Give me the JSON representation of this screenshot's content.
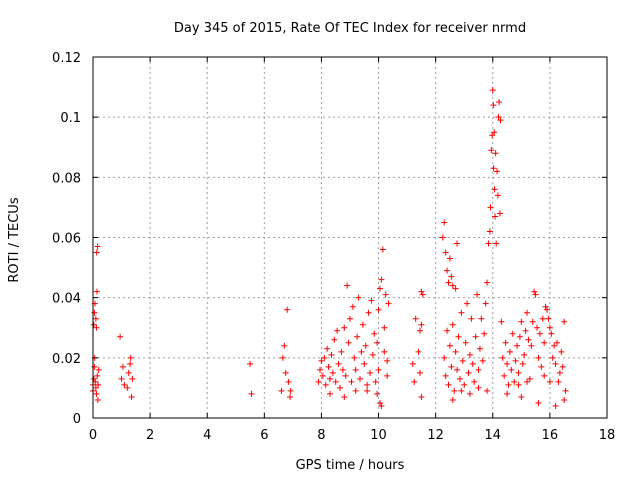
{
  "chart_data": {
    "type": "scatter",
    "title": "Day 345 of 2015, Rate Of TEC Index for receiver nrmd",
    "xlabel": "GPS time / hours",
    "ylabel": "ROTI / TECUs",
    "xlim": [
      0,
      18
    ],
    "ylim": [
      0,
      0.12
    ],
    "xticks": [
      "0",
      "2",
      "4",
      "6",
      "8",
      "10",
      "12",
      "14",
      "16",
      "18"
    ],
    "yticks": [
      "0",
      "0.02",
      "0.04",
      "0.06",
      "0.08",
      "0.1",
      "0.12"
    ],
    "grid": true,
    "marker": "+",
    "color": "#ff0000",
    "series": [
      {
        "name": "ROTI",
        "points": [
          [
            0.0,
            0.009
          ],
          [
            0.0,
            0.011
          ],
          [
            0.03,
            0.013
          ],
          [
            0.05,
            0.017
          ],
          [
            0.06,
            0.02
          ],
          [
            0.08,
            0.012
          ],
          [
            0.1,
            0.01
          ],
          [
            0.12,
            0.008
          ],
          [
            0.15,
            0.014
          ],
          [
            0.17,
            0.006
          ],
          [
            0.03,
            0.031
          ],
          [
            0.05,
            0.035
          ],
          [
            0.07,
            0.038
          ],
          [
            0.1,
            0.033
          ],
          [
            0.12,
            0.03
          ],
          [
            0.14,
            0.042
          ],
          [
            0.13,
            0.055
          ],
          [
            0.16,
            0.057
          ],
          [
            0.18,
            0.011
          ],
          [
            0.2,
            0.016
          ],
          [
            0.95,
            0.027
          ],
          [
            1.0,
            0.013
          ],
          [
            1.05,
            0.017
          ],
          [
            1.1,
            0.011
          ],
          [
            1.2,
            0.01
          ],
          [
            1.25,
            0.015
          ],
          [
            1.3,
            0.018
          ],
          [
            1.32,
            0.02
          ],
          [
            1.35,
            0.007
          ],
          [
            1.38,
            0.013
          ],
          [
            5.5,
            0.018
          ],
          [
            5.55,
            0.008
          ],
          [
            6.6,
            0.009
          ],
          [
            6.65,
            0.02
          ],
          [
            6.7,
            0.024
          ],
          [
            6.75,
            0.015
          ],
          [
            6.8,
            0.036
          ],
          [
            6.85,
            0.012
          ],
          [
            6.9,
            0.007
          ],
          [
            6.92,
            0.009
          ],
          [
            7.9,
            0.012
          ],
          [
            7.95,
            0.016
          ],
          [
            8.0,
            0.019
          ],
          [
            8.05,
            0.014
          ],
          [
            8.1,
            0.02
          ],
          [
            8.15,
            0.011
          ],
          [
            8.2,
            0.023
          ],
          [
            8.25,
            0.017
          ],
          [
            8.3,
            0.013
          ],
          [
            8.35,
            0.021
          ],
          [
            8.4,
            0.015
          ],
          [
            8.45,
            0.026
          ],
          [
            8.5,
            0.012
          ],
          [
            8.55,
            0.029
          ],
          [
            8.6,
            0.018
          ],
          [
            8.65,
            0.01
          ],
          [
            8.7,
            0.022
          ],
          [
            8.75,
            0.016
          ],
          [
            8.8,
            0.03
          ],
          [
            8.85,
            0.014
          ],
          [
            8.9,
            0.044
          ],
          [
            8.95,
            0.025
          ],
          [
            9.0,
            0.033
          ],
          [
            9.05,
            0.012
          ],
          [
            9.1,
            0.037
          ],
          [
            9.15,
            0.02
          ],
          [
            9.2,
            0.016
          ],
          [
            9.25,
            0.027
          ],
          [
            9.3,
            0.04
          ],
          [
            9.35,
            0.013
          ],
          [
            9.4,
            0.022
          ],
          [
            9.45,
            0.031
          ],
          [
            9.5,
            0.018
          ],
          [
            9.55,
            0.024
          ],
          [
            9.6,
            0.009
          ],
          [
            9.65,
            0.035
          ],
          [
            9.7,
            0.015
          ],
          [
            9.75,
            0.039
          ],
          [
            9.8,
            0.021
          ],
          [
            9.85,
            0.028
          ],
          [
            9.9,
            0.012
          ],
          [
            9.95,
            0.025
          ],
          [
            10.0,
            0.036
          ],
          [
            10.05,
            0.043
          ],
          [
            10.1,
            0.046
          ],
          [
            10.15,
            0.056
          ],
          [
            10.2,
            0.03
          ],
          [
            10.25,
            0.041
          ],
          [
            10.3,
            0.019
          ],
          [
            10.35,
            0.038
          ],
          [
            10.05,
            0.005
          ],
          [
            9.95,
            0.008
          ],
          [
            10.0,
            0.016
          ],
          [
            10.2,
            0.022
          ],
          [
            10.1,
            0.004
          ],
          [
            9.6,
            0.011
          ],
          [
            9.2,
            0.009
          ],
          [
            8.8,
            0.007
          ],
          [
            8.3,
            0.008
          ],
          [
            10.3,
            0.014
          ],
          [
            11.2,
            0.018
          ],
          [
            11.25,
            0.012
          ],
          [
            11.3,
            0.033
          ],
          [
            11.5,
            0.042
          ],
          [
            11.55,
            0.041
          ],
          [
            11.5,
            0.007
          ],
          [
            11.45,
            0.015
          ],
          [
            11.4,
            0.022
          ],
          [
            11.45,
            0.029
          ],
          [
            11.5,
            0.031
          ],
          [
            12.25,
            0.06
          ],
          [
            12.3,
            0.065
          ],
          [
            12.35,
            0.055
          ],
          [
            12.4,
            0.049
          ],
          [
            12.45,
            0.045
          ],
          [
            12.5,
            0.053
          ],
          [
            12.55,
            0.047
          ],
          [
            12.6,
            0.044
          ],
          [
            12.7,
            0.043
          ],
          [
            12.75,
            0.058
          ],
          [
            12.3,
            0.02
          ],
          [
            12.35,
            0.014
          ],
          [
            12.4,
            0.029
          ],
          [
            12.45,
            0.011
          ],
          [
            12.5,
            0.024
          ],
          [
            12.55,
            0.017
          ],
          [
            12.6,
            0.031
          ],
          [
            12.65,
            0.009
          ],
          [
            12.7,
            0.022
          ],
          [
            12.75,
            0.016
          ],
          [
            12.8,
            0.027
          ],
          [
            12.85,
            0.013
          ],
          [
            12.9,
            0.035
          ],
          [
            12.95,
            0.019
          ],
          [
            13.0,
            0.011
          ],
          [
            13.05,
            0.025
          ],
          [
            13.1,
            0.038
          ],
          [
            13.15,
            0.015
          ],
          [
            13.2,
            0.021
          ],
          [
            13.25,
            0.033
          ],
          [
            13.3,
            0.018
          ],
          [
            13.35,
            0.012
          ],
          [
            13.4,
            0.027
          ],
          [
            13.45,
            0.041
          ],
          [
            13.5,
            0.016
          ],
          [
            13.55,
            0.023
          ],
          [
            13.6,
            0.033
          ],
          [
            13.65,
            0.019
          ],
          [
            13.7,
            0.028
          ],
          [
            13.75,
            0.038
          ],
          [
            13.8,
            0.045
          ],
          [
            13.85,
            0.058
          ],
          [
            13.9,
            0.062
          ],
          [
            13.92,
            0.07
          ],
          [
            13.95,
            0.089
          ],
          [
            14.0,
            0.109
          ],
          [
            14.02,
            0.104
          ],
          [
            14.05,
            0.095
          ],
          [
            14.1,
            0.088
          ],
          [
            14.15,
            0.082
          ],
          [
            14.18,
            0.074
          ],
          [
            14.2,
            0.1
          ],
          [
            14.22,
            0.105
          ],
          [
            14.25,
            0.068
          ],
          [
            14.27,
            0.099
          ],
          [
            13.98,
            0.094
          ],
          [
            14.08,
            0.067
          ],
          [
            14.12,
            0.058
          ],
          [
            14.03,
            0.083
          ],
          [
            14.06,
            0.076
          ],
          [
            14.3,
            0.032
          ],
          [
            14.35,
            0.02
          ],
          [
            14.4,
            0.014
          ],
          [
            14.45,
            0.025
          ],
          [
            14.5,
            0.018
          ],
          [
            14.55,
            0.011
          ],
          [
            14.6,
            0.022
          ],
          [
            14.65,
            0.016
          ],
          [
            14.7,
            0.028
          ],
          [
            14.75,
            0.012
          ],
          [
            14.8,
            0.019
          ],
          [
            14.85,
            0.024
          ],
          [
            14.9,
            0.015
          ],
          [
            14.95,
            0.027
          ],
          [
            15.0,
            0.032
          ],
          [
            15.05,
            0.018
          ],
          [
            15.1,
            0.021
          ],
          [
            15.15,
            0.029
          ],
          [
            15.2,
            0.035
          ],
          [
            15.25,
            0.026
          ],
          [
            15.3,
            0.013
          ],
          [
            15.35,
            0.024
          ],
          [
            15.4,
            0.032
          ],
          [
            15.45,
            0.042
          ],
          [
            15.5,
            0.041
          ],
          [
            15.55,
            0.03
          ],
          [
            15.6,
            0.02
          ],
          [
            15.65,
            0.028
          ],
          [
            15.7,
            0.017
          ],
          [
            15.75,
            0.033
          ],
          [
            15.8,
            0.025
          ],
          [
            15.85,
            0.037
          ],
          [
            15.9,
            0.036
          ],
          [
            15.95,
            0.033
          ],
          [
            16.0,
            0.03
          ],
          [
            16.05,
            0.028
          ],
          [
            16.1,
            0.02
          ],
          [
            16.15,
            0.024
          ],
          [
            16.2,
            0.018
          ],
          [
            16.25,
            0.025
          ],
          [
            16.3,
            0.012
          ],
          [
            16.35,
            0.015
          ],
          [
            16.4,
            0.022
          ],
          [
            16.45,
            0.017
          ],
          [
            16.5,
            0.032
          ],
          [
            16.55,
            0.009
          ],
          [
            16.5,
            0.006
          ],
          [
            16.2,
            0.004
          ],
          [
            15.6,
            0.005
          ],
          [
            15.0,
            0.007
          ],
          [
            14.5,
            0.008
          ],
          [
            13.8,
            0.009
          ],
          [
            13.2,
            0.008
          ],
          [
            12.6,
            0.006
          ],
          [
            12.9,
            0.009
          ],
          [
            16.0,
            0.012
          ],
          [
            15.8,
            0.014
          ],
          [
            15.2,
            0.012
          ],
          [
            14.9,
            0.011
          ],
          [
            13.5,
            0.01
          ]
        ]
      }
    ]
  }
}
